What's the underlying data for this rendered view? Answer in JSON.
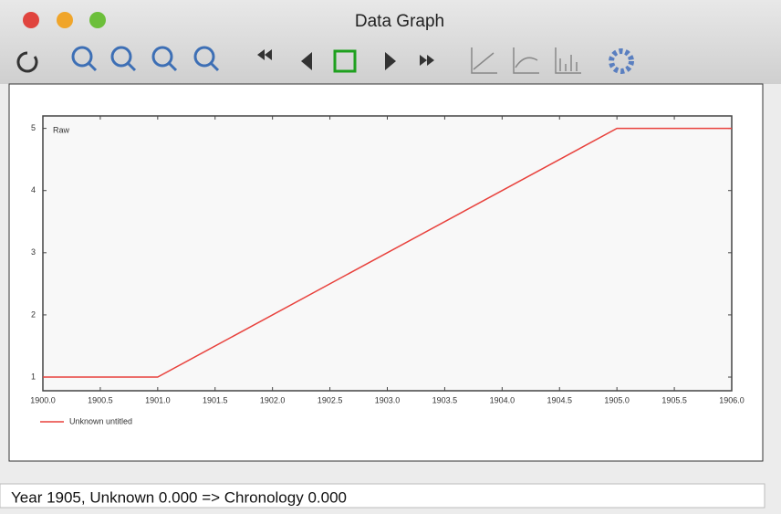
{
  "window": {
    "title": "Data Graph"
  },
  "status": "Year 1905, Unknown 0.000 => Chronology 0.000",
  "chart_data": {
    "type": "line",
    "annotation": "Raw",
    "x": [
      1900,
      1901,
      1905,
      1906
    ],
    "series": [
      {
        "name": "Unknown untitled",
        "color": "#e8413c",
        "values": [
          1,
          1,
          5,
          5
        ]
      }
    ],
    "xlim": [
      1900,
      1906
    ],
    "xticks": [
      {
        "value": 1900,
        "label": "1900.0"
      },
      {
        "value": 1900.5,
        "label": "1900.5"
      },
      {
        "value": 1901,
        "label": "1901.0"
      },
      {
        "value": 1901.5,
        "label": "1901.5"
      },
      {
        "value": 1902,
        "label": "1902.0"
      },
      {
        "value": 1902.5,
        "label": "1902.5"
      },
      {
        "value": 1903,
        "label": "1903.0"
      },
      {
        "value": 1903.5,
        "label": "1903.5"
      },
      {
        "value": 1904,
        "label": "1904.0"
      },
      {
        "value": 1904.5,
        "label": "1904.5"
      },
      {
        "value": 1905,
        "label": "1905.0"
      },
      {
        "value": 1905.5,
        "label": "1905.5"
      },
      {
        "value": 1906,
        "label": "1906.0"
      }
    ],
    "ylim": [
      0.78,
      5.2
    ],
    "yticks": [
      1,
      2,
      3,
      4,
      5
    ],
    "legend": "bottom-left"
  }
}
